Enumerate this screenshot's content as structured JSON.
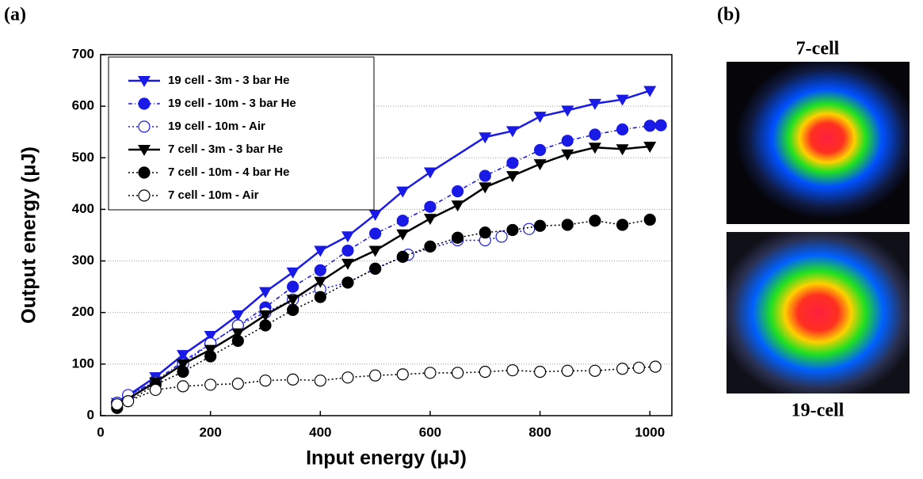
{
  "chart_data": {
    "type": "line",
    "xlabel": "Input energy (μJ)",
    "ylabel": "Output energy (μJ)",
    "xlim": [
      0,
      1040
    ],
    "ylim": [
      0,
      700
    ],
    "xticks": [
      0,
      200,
      400,
      600,
      800,
      1000
    ],
    "yticks": [
      0,
      100,
      200,
      300,
      400,
      500,
      600,
      700
    ],
    "grid": true,
    "legend": "upper left",
    "series": [
      {
        "name": "19 cell - 3m - 3 bar He",
        "color": "#1a1ae6",
        "marker": "triangle-down",
        "linestyle": "solid",
        "x": [
          30,
          100,
          150,
          200,
          250,
          300,
          350,
          400,
          450,
          500,
          550,
          600,
          700,
          750,
          800,
          850,
          900,
          950,
          1000
        ],
        "values": [
          25,
          75,
          118,
          155,
          195,
          240,
          278,
          320,
          348,
          390,
          435,
          472,
          540,
          552,
          580,
          592,
          605,
          613,
          630
        ]
      },
      {
        "name": "19 cell - 10m - 3 bar He",
        "color": "#1a1ae6",
        "marker": "circle-filled",
        "linestyle": "dashdot",
        "x": [
          30,
          50,
          100,
          150,
          200,
          250,
          300,
          350,
          400,
          450,
          500,
          550,
          600,
          650,
          700,
          750,
          800,
          850,
          900,
          950,
          1000,
          1020
        ],
        "values": [
          25,
          38,
          68,
          105,
          140,
          175,
          210,
          250,
          282,
          320,
          353,
          378,
          405,
          435,
          465,
          490,
          515,
          533,
          545,
          555,
          562,
          563
        ]
      },
      {
        "name": "19 cell - 10m - Air",
        "color": "#1a1ae6",
        "marker": "circle-open",
        "linestyle": "dotted",
        "x": [
          30,
          50,
          100,
          150,
          200,
          250,
          300,
          350,
          400,
          450,
          500,
          560,
          650,
          700,
          730,
          780
        ],
        "values": [
          25,
          40,
          65,
          100,
          140,
          175,
          200,
          225,
          245,
          258,
          285,
          312,
          340,
          340,
          347,
          362
        ]
      },
      {
        "name": "7 cell - 3m - 3 bar He",
        "color": "#000000",
        "marker": "triangle-down",
        "linestyle": "solid",
        "x": [
          30,
          100,
          150,
          200,
          250,
          300,
          350,
          400,
          450,
          500,
          550,
          600,
          650,
          700,
          750,
          800,
          850,
          900,
          950,
          1000
        ],
        "values": [
          20,
          65,
          100,
          128,
          160,
          195,
          225,
          260,
          295,
          320,
          352,
          382,
          408,
          443,
          465,
          488,
          507,
          520,
          517,
          522
        ]
      },
      {
        "name": "7 cell - 10m - 4 bar He",
        "color": "#000000",
        "marker": "circle-filled",
        "linestyle": "dotted",
        "x": [
          30,
          100,
          150,
          200,
          250,
          300,
          350,
          400,
          450,
          500,
          550,
          600,
          650,
          700,
          750,
          800,
          850,
          900,
          950,
          1000
        ],
        "values": [
          15,
          60,
          85,
          115,
          145,
          175,
          205,
          230,
          258,
          285,
          308,
          328,
          345,
          355,
          360,
          368,
          370,
          378,
          370,
          380
        ]
      },
      {
        "name": "7 cell - 10m - Air",
        "color": "#000000",
        "marker": "circle-open",
        "linestyle": "dotted",
        "x": [
          30,
          50,
          100,
          150,
          200,
          250,
          300,
          350,
          400,
          450,
          500,
          550,
          600,
          650,
          700,
          750,
          800,
          850,
          900,
          950,
          980,
          1010
        ],
        "values": [
          22,
          28,
          50,
          57,
          60,
          62,
          68,
          70,
          68,
          74,
          78,
          80,
          83,
          83,
          85,
          88,
          85,
          87,
          87,
          91,
          93,
          95
        ]
      }
    ]
  },
  "figure": {
    "label_a": "(a)",
    "label_b": "(b)",
    "image_labels": [
      "7-cell",
      "19-cell"
    ]
  }
}
